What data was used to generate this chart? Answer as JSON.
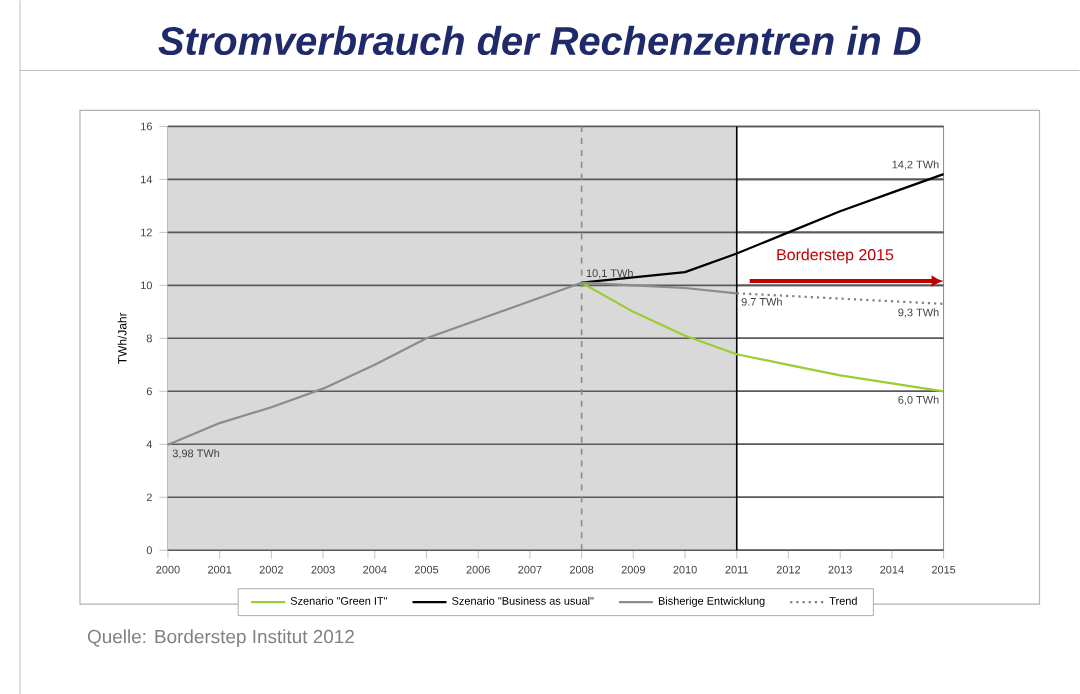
{
  "chart_data": {
    "type": "line",
    "title": "Stromverbrauch der Rechenzentren in D",
    "ylabel": "TWh/Jahr",
    "x": [
      2000,
      2001,
      2002,
      2003,
      2004,
      2005,
      2006,
      2007,
      2008,
      2009,
      2010,
      2011,
      2012,
      2013,
      2014,
      2015
    ],
    "xlim": [
      2000,
      2015
    ],
    "xticks": [
      2000,
      2001,
      2002,
      2003,
      2004,
      2005,
      2006,
      2007,
      2008,
      2009,
      2010,
      2011,
      2012,
      2013,
      2014,
      2015
    ],
    "ylim": [
      0,
      16
    ],
    "yticks": [
      0,
      2,
      4,
      6,
      8,
      10,
      12,
      14,
      16
    ],
    "grid": "y",
    "legend": "bottom",
    "marker": "none",
    "series": [
      {
        "name": "Szenario \"Green IT\"",
        "color": "#9acd32",
        "values": [
          null,
          null,
          null,
          null,
          null,
          null,
          null,
          null,
          10.1,
          9.0,
          8.1,
          7.4,
          7.0,
          6.6,
          6.3,
          6.0
        ]
      },
      {
        "name": "Szenario \"Business as usual\"",
        "color": "#000000",
        "values": [
          null,
          null,
          null,
          null,
          null,
          null,
          null,
          null,
          10.1,
          10.3,
          10.5,
          11.2,
          12.0,
          12.8,
          13.5,
          14.2
        ]
      },
      {
        "name": "Bisherige Entwicklung",
        "color": "#8c8c8c",
        "values": [
          3.98,
          4.8,
          5.4,
          6.1,
          7.0,
          8.0,
          8.7,
          9.4,
          10.1,
          10.0,
          9.9,
          9.7,
          null,
          null,
          null,
          null
        ]
      },
      {
        "name": "Trend",
        "color": "#7f7f7f",
        "line_style": "dotted",
        "x": [
          2011,
          2015
        ],
        "values": [
          9.7,
          9.3
        ]
      }
    ],
    "bands": [
      {
        "axis": "x",
        "from": 2000,
        "to": 2011,
        "color": "#d9d9d9"
      }
    ],
    "ref_lines": [
      {
        "axis": "x",
        "value": 2008,
        "color": "#8c8c8c",
        "line_style": "dashed"
      },
      {
        "axis": "x",
        "value": 2011,
        "color": "#000000",
        "line_style": "solid"
      }
    ],
    "annotations": [
      {
        "text": "10,1 TWh",
        "x": 2008,
        "y": 10.1
      },
      {
        "text": "3,98 TWh",
        "x": 2000,
        "y": 3.98
      },
      {
        "text": "14,2 TWh",
        "x": 2015,
        "y": 14.2
      },
      {
        "text": "9.7 TWh",
        "x": 2011,
        "y": 9.7
      },
      {
        "text": "9,3 TWh",
        "x": 2015,
        "y": 9.3
      },
      {
        "text": "6,0 TWh",
        "x": 2015,
        "y": 6.0
      },
      "Borderstep 2015",
      "Quelle: Borderstep Institut 2012"
    ]
  }
}
